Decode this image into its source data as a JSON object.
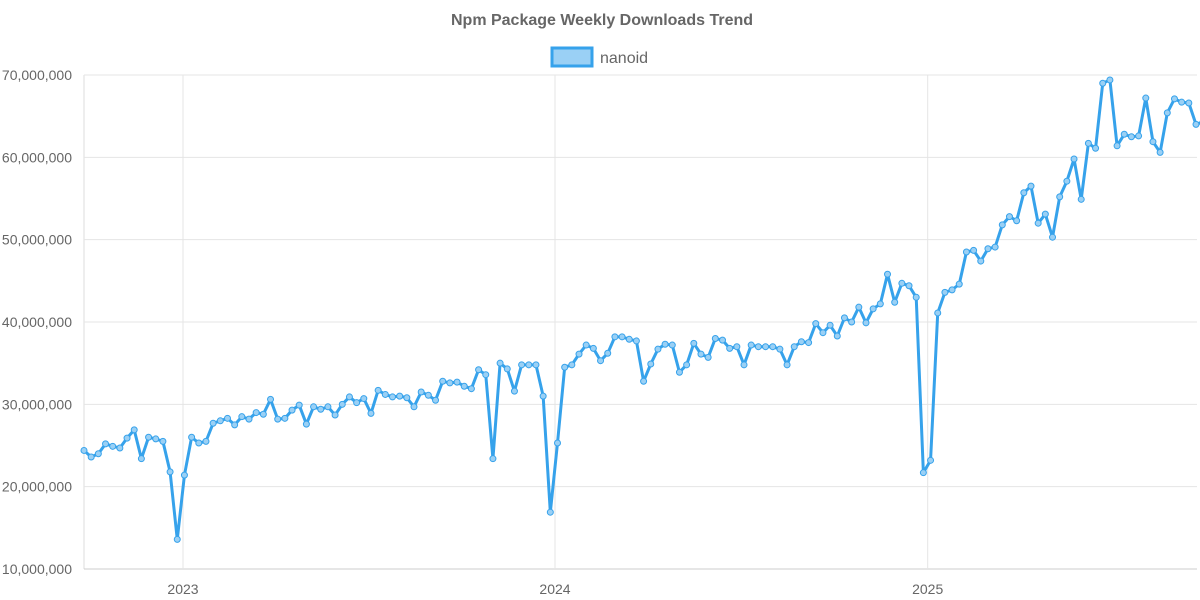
{
  "chart_data": {
    "type": "line",
    "title": "Npm Package Weekly Downloads Trend",
    "xlabel": "",
    "ylabel": "",
    "ylim": [
      10000000,
      70000000
    ],
    "yticks": [
      10000000,
      20000000,
      30000000,
      40000000,
      50000000,
      60000000,
      70000000
    ],
    "ytick_labels": [
      "10,000,000",
      "20,000,000",
      "30,000,000",
      "40,000,000",
      "50,000,000",
      "60,000,000",
      "70,000,000"
    ],
    "x_unit": "week index",
    "xlim": [
      0,
      155
    ],
    "xticks": [
      13.8,
      65.65,
      117.6
    ],
    "xtick_labels": [
      "2023",
      "2024",
      "2025"
    ],
    "grid": true,
    "legend_position": "top-center",
    "colors": {
      "line": "#36a2eb",
      "fill": "#9ad0f5"
    },
    "series": [
      {
        "name": "nanoid",
        "values_millions": [
          24.4,
          23.6,
          24.0,
          25.2,
          24.9,
          24.7,
          25.9,
          26.9,
          23.4,
          26.0,
          25.8,
          25.5,
          21.8,
          13.6,
          21.4,
          26.0,
          25.3,
          25.5,
          27.7,
          28.0,
          28.3,
          27.5,
          28.5,
          28.2,
          29.0,
          28.8,
          30.6,
          28.2,
          28.3,
          29.3,
          29.9,
          27.6,
          29.7,
          29.4,
          29.7,
          28.7,
          30.0,
          30.9,
          30.2,
          30.7,
          28.9,
          31.7,
          31.2,
          30.9,
          31.0,
          30.8,
          29.7,
          31.5,
          31.1,
          30.5,
          32.8,
          32.6,
          32.7,
          32.2,
          31.9,
          34.2,
          33.6,
          23.4,
          35.0,
          34.3,
          31.6,
          34.8,
          34.8,
          34.8,
          31.0,
          16.9,
          25.3,
          34.5,
          34.8,
          36.1,
          37.2,
          36.8,
          35.3,
          36.2,
          38.2,
          38.2,
          37.9,
          37.7,
          32.8,
          34.9,
          36.7,
          37.3,
          37.2,
          33.9,
          34.8,
          37.4,
          36.1,
          35.7,
          38.0,
          37.8,
          36.8,
          37.0,
          34.8,
          37.2,
          37.0,
          37.0,
          37.0,
          36.7,
          34.8,
          37.0,
          37.6,
          37.5,
          39.8,
          38.7,
          39.6,
          38.3,
          40.5,
          40.0,
          41.8,
          39.9,
          41.6,
          42.2,
          45.8,
          42.4,
          44.7,
          44.4,
          43.0,
          21.7,
          23.2,
          41.1,
          43.6,
          43.9,
          44.6,
          48.5,
          48.7,
          47.4,
          48.9,
          49.1,
          51.8,
          52.8,
          52.3,
          55.7,
          56.5,
          52.0,
          53.1,
          50.3,
          55.2,
          57.1,
          59.8,
          54.9,
          61.7,
          61.1,
          69.0,
          69.4,
          61.4,
          62.8,
          62.5,
          62.6,
          67.2,
          61.9,
          60.6,
          65.4,
          67.1,
          66.7,
          66.6,
          64.0,
          64.3
        ]
      }
    ]
  }
}
